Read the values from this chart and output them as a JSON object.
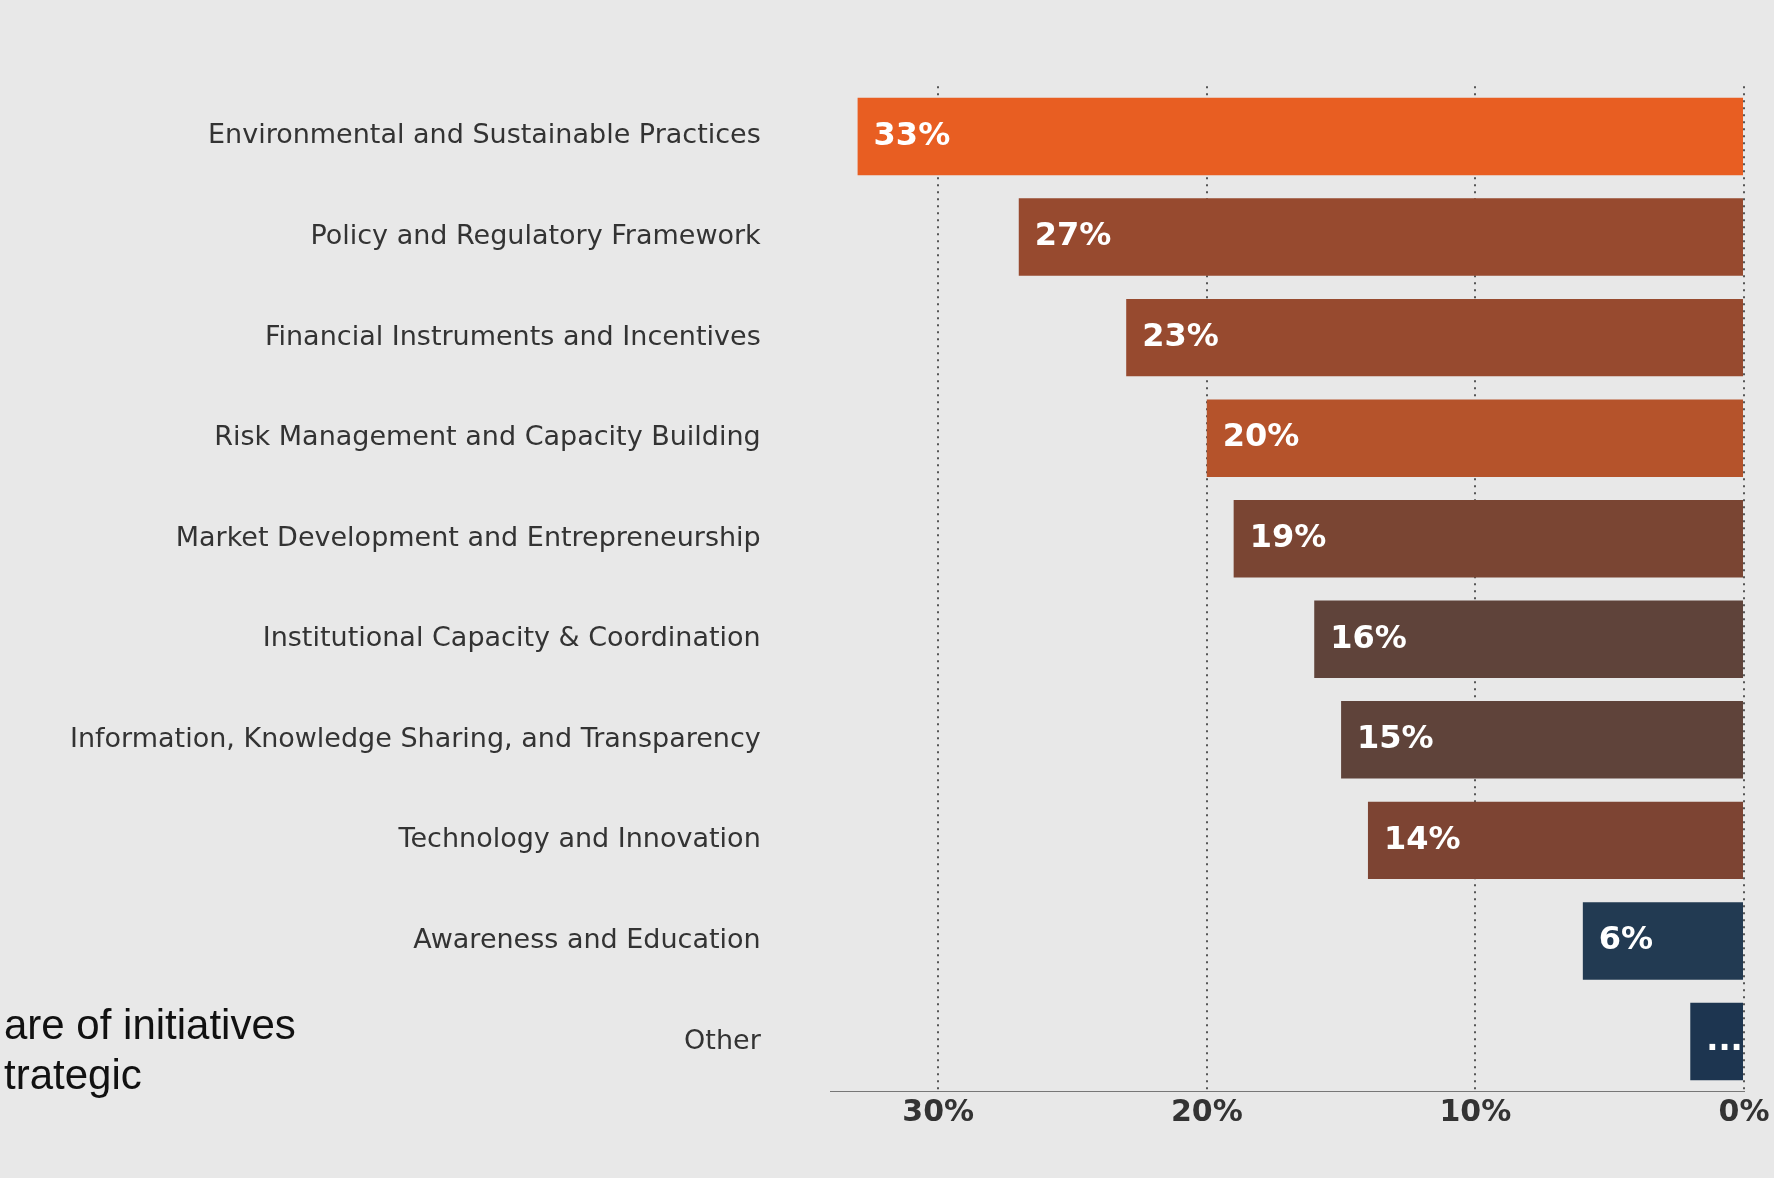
{
  "chart_data": {
    "type": "bar",
    "orientation": "horizontal",
    "categories": [
      "Environmental and Sustainable Practices",
      "Policy and Regulatory Framework",
      "Financial Instruments and Incentives",
      "Risk Management and Capacity Building",
      "Market Development and Entrepreneurship",
      "Institutional Capacity & Coordination",
      "Information, Knowledge Sharing, and Transparency",
      "Technology and Innovation",
      "Awareness and Education",
      "Other"
    ],
    "values": [
      33,
      27,
      23,
      20,
      19,
      16,
      15,
      14,
      6,
      2
    ],
    "colors": [
      "#e85e22",
      "#974a2f",
      "#974a2f",
      "#b5532b",
      "#7a4533",
      "#5f433a",
      "#5f433a",
      "#7d4433",
      "#223a52",
      "#1d3550"
    ],
    "value_labels": [
      "33%",
      "27%",
      "23%",
      "20%",
      "19%",
      "16%",
      "15%",
      "14%",
      "6%",
      "..."
    ],
    "xlim": [
      34,
      0
    ],
    "xticks": [
      {
        "value": 30,
        "label": "30%"
      },
      {
        "value": 20,
        "label": "20%"
      },
      {
        "value": 10,
        "label": "10%"
      },
      {
        "value": 0,
        "label": "0%"
      }
    ],
    "grid": "x",
    "legend": false,
    "annotations": [
      "are of initiatives\ntrategic"
    ]
  }
}
